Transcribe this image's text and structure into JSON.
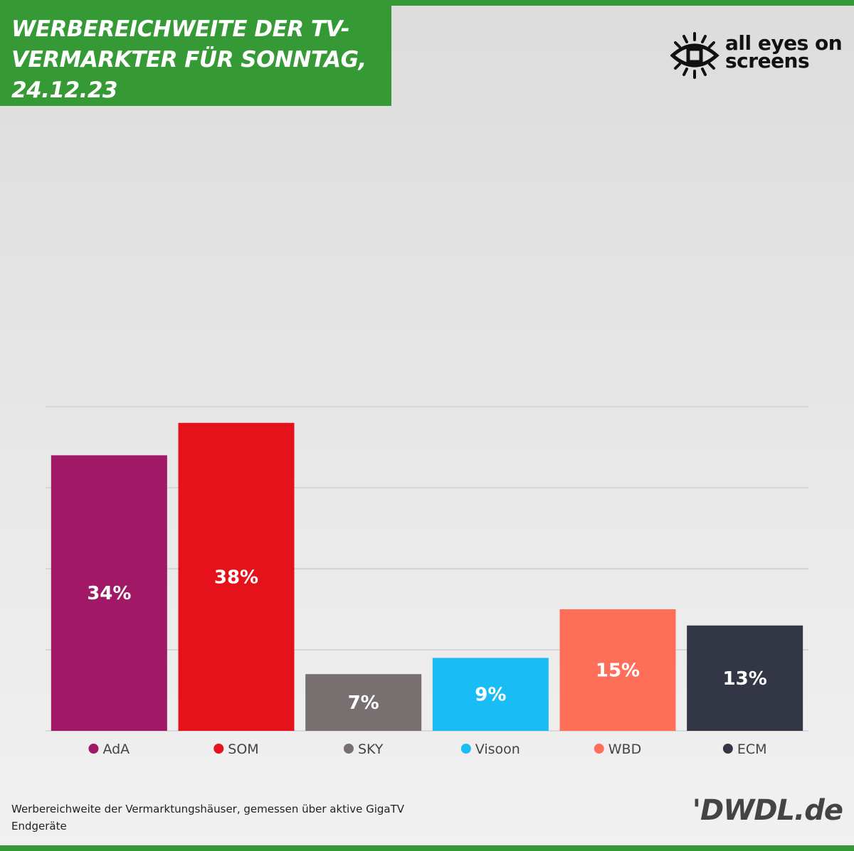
{
  "title": "WERBEREICHWEITE DER TV-\nVERMARKTER FÜR SONNTAG,\n24.12.23",
  "logo": {
    "line1": "all eyes on",
    "line2": "screens",
    "icon": "eye-icon"
  },
  "caption": "Werbereichweite der Vermarktungshäuser, gemessen über aktive GigaTV Endgeräte",
  "brand": "'DWDL.de",
  "colors": {
    "header_green": "#359a35"
  },
  "chart_data": {
    "type": "bar",
    "categories": [
      "AdA",
      "SOM",
      "SKY",
      "Visoon",
      "WBD",
      "ECM"
    ],
    "values": [
      34,
      38,
      7,
      9,
      15,
      13
    ],
    "value_labels": [
      "34%",
      "38%",
      "7%",
      "9%",
      "15%",
      "13%"
    ],
    "colors": [
      "#a01866",
      "#e5111b",
      "#787070",
      "#1abcf5",
      "#ff6e58",
      "#333745"
    ],
    "ylim": [
      0,
      40
    ],
    "grid": true,
    "legend": "bottom"
  }
}
